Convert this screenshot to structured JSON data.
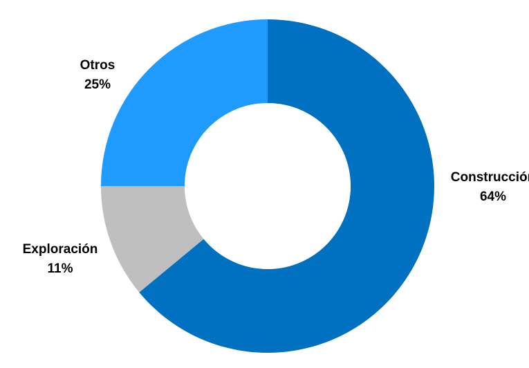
{
  "chart_data": {
    "type": "pie",
    "donut": true,
    "slices": [
      {
        "label": "Construcción",
        "value": 64,
        "value_label": "64%",
        "color": "#0070C0"
      },
      {
        "label": "Exploración",
        "value": 11,
        "value_label": "11%",
        "color": "#BFBFBF"
      },
      {
        "label": "Otros",
        "value": 25,
        "value_label": "25%",
        "color": "#1F9BFF"
      }
    ],
    "start_angle_deg": 0,
    "direction": "clockwise",
    "legend": "none"
  }
}
